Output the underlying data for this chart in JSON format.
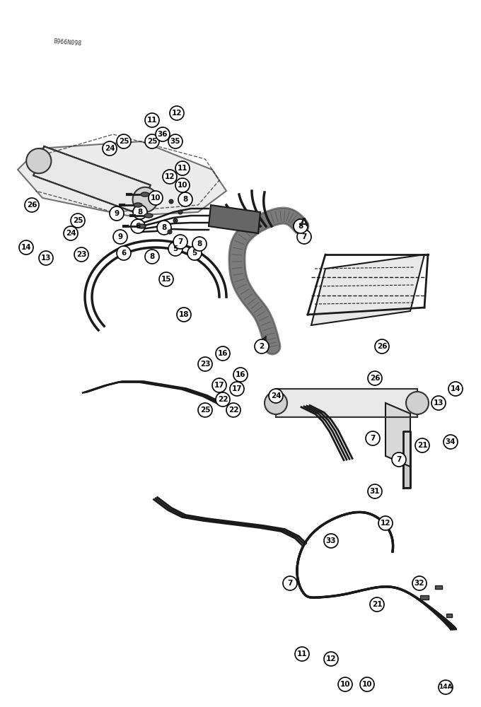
{
  "bg_color": "#ffffff",
  "line_color": "#1a1a1a",
  "label_fontsize": 7.5,
  "watermark": "B966N098",
  "fig_width": 6.8,
  "fig_height": 10.0,
  "dpi": 100
}
